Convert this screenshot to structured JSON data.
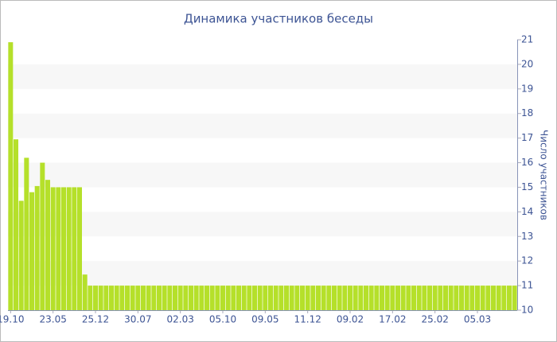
{
  "chart_data": {
    "type": "bar",
    "title": "Динамика участников беседы",
    "y_label": "Число участников",
    "categories": [
      "19.10",
      null,
      null,
      null,
      null,
      null,
      null,
      null,
      "23.05",
      null,
      null,
      null,
      null,
      null,
      null,
      null,
      "25.12",
      null,
      null,
      null,
      null,
      null,
      null,
      null,
      "30.07",
      null,
      null,
      null,
      null,
      null,
      null,
      null,
      "02.03",
      null,
      null,
      null,
      null,
      null,
      null,
      null,
      "05.10",
      null,
      null,
      null,
      null,
      null,
      null,
      null,
      "09.05",
      null,
      null,
      null,
      null,
      null,
      null,
      null,
      "11.12",
      null,
      null,
      null,
      null,
      null,
      null,
      null,
      "09.02",
      null,
      null,
      null,
      null,
      null,
      null,
      null,
      "17.02",
      null,
      null,
      null,
      null,
      null,
      null,
      null,
      "25.02",
      null,
      null,
      null,
      null,
      null,
      null,
      null,
      "05.03",
      null,
      null,
      null,
      null,
      null,
      null,
      null
    ],
    "values": [
      20.9,
      16.95,
      14.45,
      16.2,
      14.8,
      15.05,
      16.0,
      15.3,
      15,
      15,
      15,
      15,
      15,
      15,
      11.45,
      11,
      11,
      11,
      11,
      11,
      11,
      11,
      11,
      11,
      11,
      11,
      11,
      11,
      11,
      11,
      11,
      11,
      11,
      11,
      11,
      11,
      11,
      11,
      11,
      11,
      11,
      11,
      11,
      11,
      11,
      11,
      11,
      11,
      11,
      11,
      11,
      11,
      11,
      11,
      11,
      11,
      11,
      11,
      11,
      11,
      11,
      11,
      11,
      11,
      11,
      11,
      11,
      11,
      11,
      11,
      11,
      11,
      11,
      11,
      11,
      11,
      11,
      11,
      11,
      11,
      11,
      11,
      11,
      11,
      11,
      11,
      11,
      11,
      11,
      11,
      11,
      11,
      11,
      11,
      11,
      11
    ],
    "color": "#b5e02a",
    "ylim": [
      10,
      21
    ],
    "yticks": [
      10,
      11,
      12,
      13,
      14,
      15,
      16,
      17,
      18,
      19,
      20,
      21
    ],
    "y_axis_side": "right",
    "grid": true
  }
}
